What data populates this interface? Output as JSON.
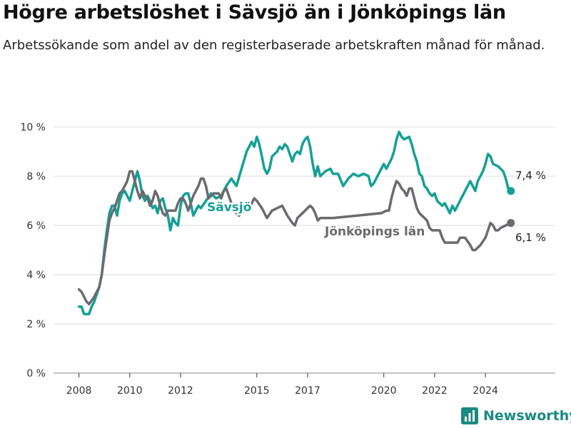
{
  "title": "Högre arbetslöshet i Sävsjö än i Jönköpings län",
  "subtitle": "Arbetssökande som andel av den registerbaserade arbetskraften månad för månad.",
  "brand": "Newsworthy",
  "colors": {
    "savsjo": "#14a096",
    "lan": "#6b6b6f",
    "brand": "#1a8a80"
  },
  "chart_data": {
    "type": "line",
    "xlabel": "",
    "ylabel": "",
    "xlim": [
      2007.0,
      2026.75
    ],
    "ylim": [
      0,
      10.5
    ],
    "x_ticks": [
      {
        "value": 2008,
        "label": "2008"
      },
      {
        "value": 2010,
        "label": "2010"
      },
      {
        "value": 2012,
        "label": "2012"
      },
      {
        "value": 2015,
        "label": "2015"
      },
      {
        "value": 2017,
        "label": "2017"
      },
      {
        "value": 2020,
        "label": "2020"
      },
      {
        "value": 2022,
        "label": "2022"
      },
      {
        "value": 2024,
        "label": "2024"
      }
    ],
    "y_ticks": [
      {
        "value": 0,
        "label": "0 %"
      },
      {
        "value": 2,
        "label": "2 %"
      },
      {
        "value": 4,
        "label": "4 %"
      },
      {
        "value": 6,
        "label": "6 %"
      },
      {
        "value": 8,
        "label": "8 %"
      },
      {
        "value": 10,
        "label": "10 %"
      }
    ],
    "grid": true,
    "series": [
      {
        "name": "Sävsjö",
        "color": "#14a096",
        "end_label": "7,4 %",
        "points": [
          [
            2008.0,
            2.7
          ],
          [
            2008.1,
            2.7
          ],
          [
            2008.2,
            2.4
          ],
          [
            2008.4,
            2.4
          ],
          [
            2008.5,
            2.7
          ],
          [
            2008.6,
            2.9
          ],
          [
            2008.7,
            3.2
          ],
          [
            2008.8,
            3.5
          ],
          [
            2008.9,
            4.0
          ],
          [
            2009.0,
            5.0
          ],
          [
            2009.1,
            5.8
          ],
          [
            2009.2,
            6.5
          ],
          [
            2009.3,
            6.8
          ],
          [
            2009.4,
            6.8
          ],
          [
            2009.5,
            6.4
          ],
          [
            2009.6,
            7.0
          ],
          [
            2009.7,
            7.3
          ],
          [
            2009.8,
            7.4
          ],
          [
            2009.9,
            7.2
          ],
          [
            2010.0,
            7.0
          ],
          [
            2010.1,
            7.4
          ],
          [
            2010.2,
            7.8
          ],
          [
            2010.3,
            8.2
          ],
          [
            2010.4,
            7.8
          ],
          [
            2010.5,
            7.2
          ],
          [
            2010.6,
            7.0
          ],
          [
            2010.7,
            7.2
          ],
          [
            2010.8,
            7.0
          ],
          [
            2010.9,
            6.7
          ],
          [
            2011.0,
            6.8
          ],
          [
            2011.1,
            6.5
          ],
          [
            2011.2,
            7.0
          ],
          [
            2011.3,
            7.1
          ],
          [
            2011.4,
            6.7
          ],
          [
            2011.5,
            6.4
          ],
          [
            2011.6,
            5.8
          ],
          [
            2011.7,
            6.3
          ],
          [
            2011.8,
            6.1
          ],
          [
            2011.9,
            6.0
          ],
          [
            2012.0,
            6.8
          ],
          [
            2012.1,
            7.2
          ],
          [
            2012.2,
            7.3
          ],
          [
            2012.3,
            7.3
          ],
          [
            2012.4,
            6.9
          ],
          [
            2012.5,
            6.4
          ],
          [
            2012.6,
            6.6
          ],
          [
            2012.7,
            6.8
          ],
          [
            2012.8,
            6.7
          ],
          [
            2013.0,
            7.0
          ],
          [
            2013.2,
            7.3
          ],
          [
            2013.4,
            7.1
          ],
          [
            2013.6,
            7.2
          ],
          [
            2013.8,
            7.6
          ],
          [
            2014.0,
            7.9
          ],
          [
            2014.2,
            7.6
          ],
          [
            2014.4,
            8.3
          ],
          [
            2014.6,
            9.0
          ],
          [
            2014.8,
            9.4
          ],
          [
            2014.9,
            9.2
          ],
          [
            2015.0,
            9.6
          ],
          [
            2015.1,
            9.3
          ],
          [
            2015.2,
            8.8
          ],
          [
            2015.3,
            8.3
          ],
          [
            2015.4,
            8.1
          ],
          [
            2015.5,
            8.3
          ],
          [
            2015.6,
            8.8
          ],
          [
            2015.7,
            8.9
          ],
          [
            2015.8,
            9.0
          ],
          [
            2015.9,
            9.2
          ],
          [
            2016.0,
            9.1
          ],
          [
            2016.1,
            9.3
          ],
          [
            2016.2,
            9.2
          ],
          [
            2016.3,
            8.9
          ],
          [
            2016.4,
            8.6
          ],
          [
            2016.5,
            8.9
          ],
          [
            2016.6,
            9.0
          ],
          [
            2016.7,
            8.9
          ],
          [
            2016.8,
            9.3
          ],
          [
            2016.9,
            9.5
          ],
          [
            2017.0,
            9.6
          ],
          [
            2017.1,
            9.2
          ],
          [
            2017.2,
            8.5
          ],
          [
            2017.3,
            8.0
          ],
          [
            2017.4,
            8.4
          ],
          [
            2017.5,
            8.0
          ],
          [
            2017.7,
            8.2
          ],
          [
            2017.9,
            8.3
          ],
          [
            2018.0,
            8.1
          ],
          [
            2018.2,
            8.1
          ],
          [
            2018.4,
            7.6
          ],
          [
            2018.6,
            7.9
          ],
          [
            2018.8,
            8.1
          ],
          [
            2019.0,
            8.0
          ],
          [
            2019.2,
            8.1
          ],
          [
            2019.4,
            8.0
          ],
          [
            2019.5,
            7.6
          ],
          [
            2019.6,
            7.7
          ],
          [
            2019.8,
            8.1
          ],
          [
            2020.0,
            8.5
          ],
          [
            2020.1,
            8.3
          ],
          [
            2020.2,
            8.5
          ],
          [
            2020.3,
            8.7
          ],
          [
            2020.4,
            9.0
          ],
          [
            2020.5,
            9.5
          ],
          [
            2020.6,
            9.8
          ],
          [
            2020.7,
            9.6
          ],
          [
            2020.8,
            9.5
          ],
          [
            2021.0,
            9.6
          ],
          [
            2021.1,
            9.3
          ],
          [
            2021.2,
            8.9
          ],
          [
            2021.3,
            8.6
          ],
          [
            2021.4,
            8.1
          ],
          [
            2021.5,
            8.0
          ],
          [
            2021.6,
            7.6
          ],
          [
            2021.7,
            7.5
          ],
          [
            2021.8,
            7.3
          ],
          [
            2021.9,
            7.2
          ],
          [
            2022.0,
            7.3
          ],
          [
            2022.1,
            7.0
          ],
          [
            2022.2,
            6.9
          ],
          [
            2022.3,
            6.8
          ],
          [
            2022.4,
            6.9
          ],
          [
            2022.5,
            6.7
          ],
          [
            2022.6,
            6.5
          ],
          [
            2022.7,
            6.8
          ],
          [
            2022.8,
            6.6
          ],
          [
            2022.9,
            6.8
          ],
          [
            2023.0,
            7.0
          ],
          [
            2023.2,
            7.4
          ],
          [
            2023.4,
            7.8
          ],
          [
            2023.6,
            7.4
          ],
          [
            2023.7,
            7.8
          ],
          [
            2023.9,
            8.2
          ],
          [
            2024.0,
            8.5
          ],
          [
            2024.1,
            8.9
          ],
          [
            2024.2,
            8.8
          ],
          [
            2024.3,
            8.5
          ],
          [
            2024.5,
            8.4
          ],
          [
            2024.7,
            8.2
          ],
          [
            2024.8,
            7.9
          ],
          [
            2024.9,
            7.5
          ],
          [
            2025.0,
            7.4
          ]
        ]
      },
      {
        "name": "Jönköpings län",
        "color": "#6b6b6f",
        "end_label": "6,1 %",
        "points": [
          [
            2008.0,
            3.4
          ],
          [
            2008.1,
            3.3
          ],
          [
            2008.3,
            2.9
          ],
          [
            2008.4,
            2.8
          ],
          [
            2008.6,
            3.1
          ],
          [
            2008.8,
            3.5
          ],
          [
            2008.9,
            4.0
          ],
          [
            2009.0,
            4.8
          ],
          [
            2009.1,
            5.5
          ],
          [
            2009.2,
            6.2
          ],
          [
            2009.3,
            6.5
          ],
          [
            2009.4,
            6.7
          ],
          [
            2009.5,
            7.0
          ],
          [
            2009.6,
            7.3
          ],
          [
            2009.7,
            7.4
          ],
          [
            2009.8,
            7.6
          ],
          [
            2009.9,
            7.8
          ],
          [
            2010.0,
            8.2
          ],
          [
            2010.1,
            8.2
          ],
          [
            2010.2,
            7.8
          ],
          [
            2010.3,
            7.4
          ],
          [
            2010.4,
            7.1
          ],
          [
            2010.5,
            7.4
          ],
          [
            2010.6,
            7.2
          ],
          [
            2010.7,
            7.1
          ],
          [
            2010.8,
            6.8
          ],
          [
            2010.9,
            7.0
          ],
          [
            2011.0,
            7.4
          ],
          [
            2011.1,
            7.2
          ],
          [
            2011.2,
            6.8
          ],
          [
            2011.3,
            6.5
          ],
          [
            2011.4,
            6.4
          ],
          [
            2011.5,
            6.6
          ],
          [
            2011.8,
            6.6
          ],
          [
            2011.9,
            6.9
          ],
          [
            2012.0,
            7.1
          ],
          [
            2012.1,
            7.1
          ],
          [
            2012.2,
            6.9
          ],
          [
            2012.3,
            6.6
          ],
          [
            2012.4,
            6.9
          ],
          [
            2012.5,
            7.2
          ],
          [
            2012.6,
            7.4
          ],
          [
            2012.7,
            7.6
          ],
          [
            2012.8,
            7.9
          ],
          [
            2012.9,
            7.9
          ],
          [
            2013.0,
            7.6
          ],
          [
            2013.1,
            7.1
          ],
          [
            2013.3,
            7.3
          ],
          [
            2013.5,
            7.3
          ],
          [
            2013.6,
            7.1
          ],
          [
            2013.7,
            7.4
          ],
          [
            2013.8,
            7.5
          ],
          [
            2013.9,
            7.2
          ],
          [
            2014.0,
            6.9
          ],
          [
            2014.1,
            6.6
          ],
          [
            2014.3,
            6.4
          ],
          [
            2014.5,
            6.6
          ],
          [
            2014.7,
            6.7
          ],
          [
            2014.9,
            7.1
          ],
          [
            2015.0,
            7.0
          ],
          [
            2015.2,
            6.7
          ],
          [
            2015.4,
            6.3
          ],
          [
            2015.6,
            6.6
          ],
          [
            2015.8,
            6.7
          ],
          [
            2016.0,
            6.8
          ],
          [
            2016.2,
            6.4
          ],
          [
            2016.4,
            6.1
          ],
          [
            2016.5,
            6.0
          ],
          [
            2016.6,
            6.3
          ],
          [
            2016.8,
            6.5
          ],
          [
            2017.0,
            6.7
          ],
          [
            2017.1,
            6.8
          ],
          [
            2017.2,
            6.7
          ],
          [
            2017.3,
            6.5
          ],
          [
            2017.4,
            6.2
          ],
          [
            2017.5,
            6.3
          ],
          [
            2018.0,
            6.3
          ],
          [
            2019.9,
            6.5
          ],
          [
            2020.1,
            6.6
          ],
          [
            2020.2,
            6.6
          ],
          [
            2020.3,
            7.1
          ],
          [
            2020.4,
            7.5
          ],
          [
            2020.5,
            7.8
          ],
          [
            2020.6,
            7.7
          ],
          [
            2020.7,
            7.5
          ],
          [
            2020.8,
            7.4
          ],
          [
            2020.9,
            7.2
          ],
          [
            2021.0,
            7.5
          ],
          [
            2021.1,
            7.5
          ],
          [
            2021.2,
            7.1
          ],
          [
            2021.3,
            6.7
          ],
          [
            2021.4,
            6.5
          ],
          [
            2021.5,
            6.4
          ],
          [
            2021.6,
            6.3
          ],
          [
            2021.7,
            6.2
          ],
          [
            2021.8,
            5.9
          ],
          [
            2021.9,
            5.8
          ],
          [
            2022.0,
            5.8
          ],
          [
            2022.2,
            5.8
          ],
          [
            2022.3,
            5.5
          ],
          [
            2022.4,
            5.3
          ],
          [
            2022.8,
            5.3
          ],
          [
            2022.9,
            5.3
          ],
          [
            2023.0,
            5.5
          ],
          [
            2023.2,
            5.5
          ],
          [
            2023.4,
            5.2
          ],
          [
            2023.5,
            5.0
          ],
          [
            2023.6,
            5.0
          ],
          [
            2023.8,
            5.2
          ],
          [
            2024.0,
            5.5
          ],
          [
            2024.1,
            5.8
          ],
          [
            2024.2,
            6.1
          ],
          [
            2024.3,
            6.0
          ],
          [
            2024.4,
            5.8
          ],
          [
            2024.5,
            5.8
          ],
          [
            2024.6,
            5.9
          ],
          [
            2024.8,
            6.0
          ],
          [
            2025.0,
            6.1
          ]
        ]
      }
    ]
  }
}
